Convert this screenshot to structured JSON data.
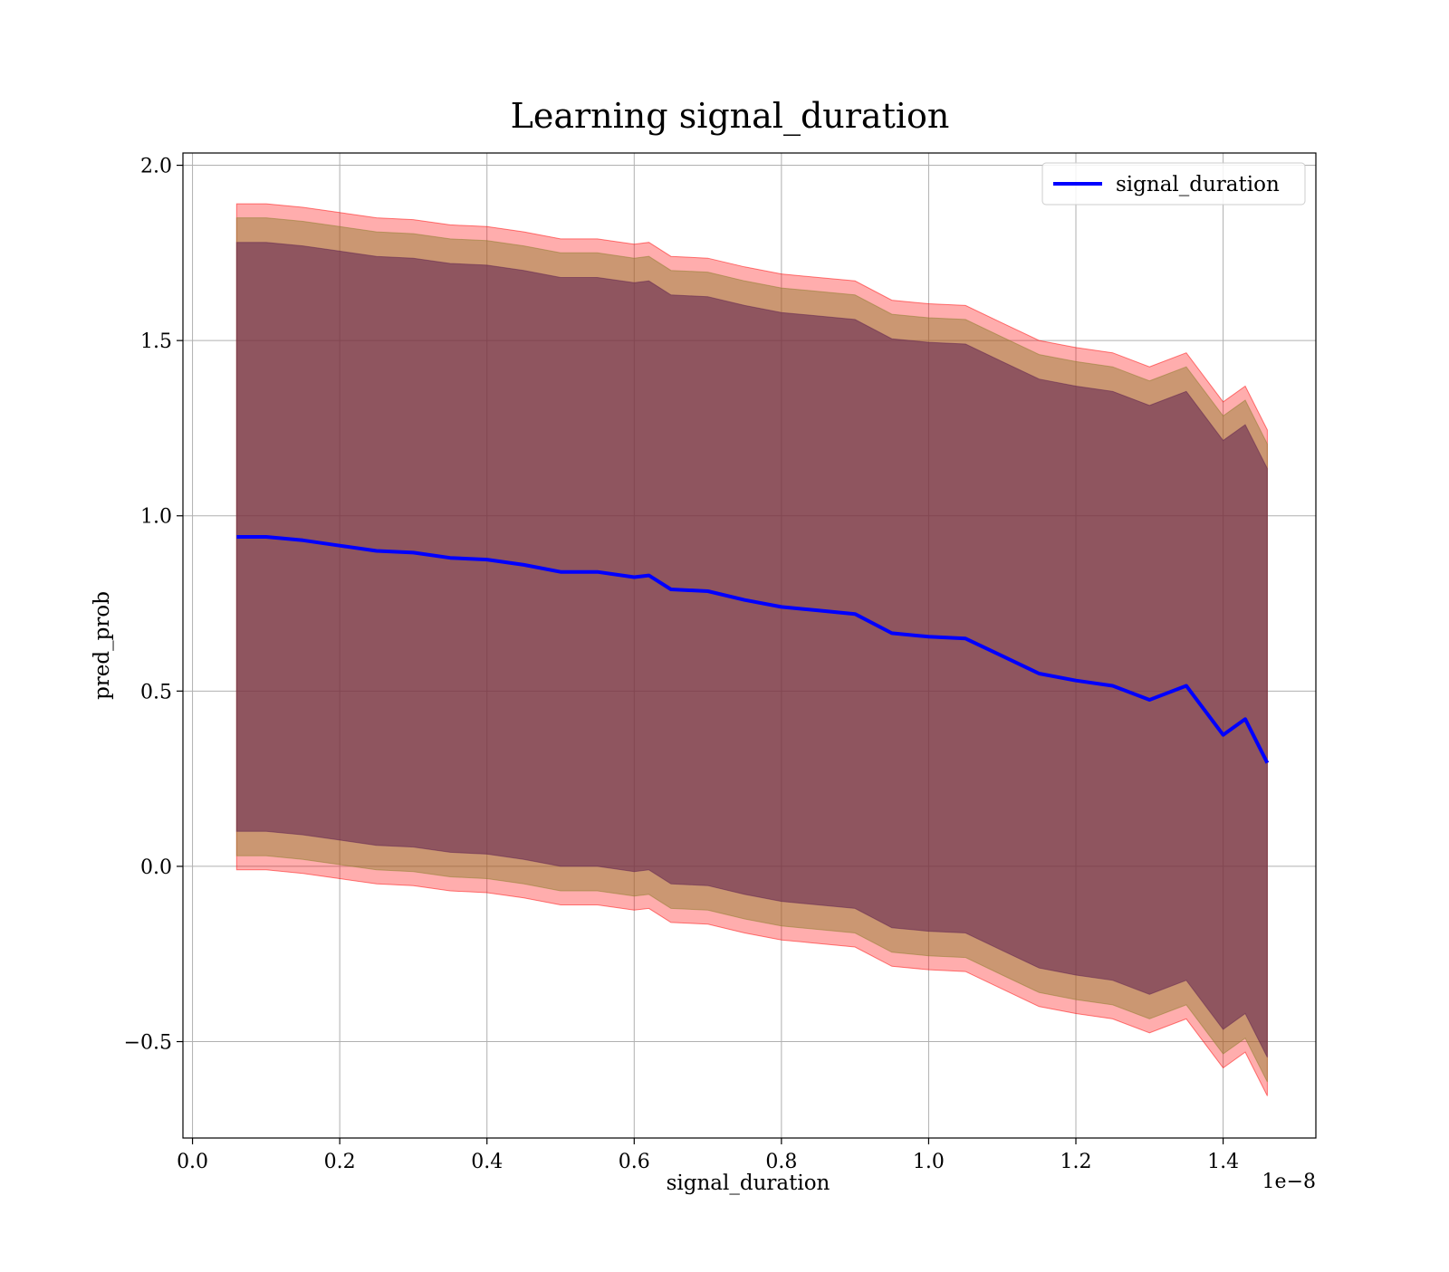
{
  "chart_data": {
    "type": "line",
    "title": "Learning signal_duration",
    "xlabel": "signal_duration",
    "ylabel": "pred_prob",
    "x_offset_label": "1e−8",
    "xlim": [
      -0.013,
      1.526
    ],
    "ylim": [
      -0.775,
      2.035
    ],
    "x_ticks": [
      0.0,
      0.2,
      0.4,
      0.6,
      0.8,
      1.0,
      1.2,
      1.4
    ],
    "x_tick_labels": [
      "0.0",
      "0.2",
      "0.4",
      "0.6",
      "0.8",
      "1.0",
      "1.2",
      "1.4"
    ],
    "y_ticks": [
      -0.5,
      0.0,
      0.5,
      1.0,
      1.5,
      2.0
    ],
    "y_tick_labels": [
      "−0.5",
      "0.0",
      "0.5",
      "1.0",
      "1.5",
      "2.0"
    ],
    "grid": true,
    "legend": {
      "position": "top-right",
      "entries": [
        "signal_duration"
      ]
    },
    "colors": {
      "line": "#0000ff",
      "outer_band": "#ff0000",
      "middle_band": "#8b7d2a",
      "inner_band": "#5e1f50"
    },
    "series": [
      {
        "name": "signal_duration",
        "x": [
          0.06,
          0.1,
          0.15,
          0.2,
          0.25,
          0.3,
          0.35,
          0.4,
          0.45,
          0.5,
          0.55,
          0.6,
          0.62,
          0.65,
          0.7,
          0.75,
          0.8,
          0.85,
          0.9,
          0.95,
          1.0,
          1.05,
          1.1,
          1.15,
          1.2,
          1.25,
          1.3,
          1.35,
          1.4,
          1.43,
          1.46
        ],
        "y": [
          0.94,
          0.94,
          0.93,
          0.915,
          0.9,
          0.895,
          0.88,
          0.875,
          0.86,
          0.84,
          0.84,
          0.825,
          0.83,
          0.79,
          0.785,
          0.76,
          0.74,
          0.73,
          0.72,
          0.665,
          0.655,
          0.65,
          0.6,
          0.55,
          0.53,
          0.515,
          0.475,
          0.515,
          0.375,
          0.42,
          0.295
        ]
      }
    ],
    "bands": [
      {
        "kind": "outer",
        "x": [
          0.06,
          1.46
        ],
        "upper_minus_mean": [
          0.95,
          0.95
        ],
        "lower_minus_mean": [
          -0.95,
          -0.95
        ]
      },
      {
        "kind": "middle",
        "x": [
          0.06,
          1.46
        ],
        "upper_minus_mean": [
          0.91,
          0.91
        ],
        "lower_minus_mean": [
          -0.91,
          -0.91
        ]
      },
      {
        "kind": "inner",
        "x": [
          0.06,
          1.46
        ],
        "upper_minus_mean": [
          0.84,
          0.84
        ],
        "lower_minus_mean": [
          -0.84,
          -0.84
        ]
      }
    ]
  }
}
